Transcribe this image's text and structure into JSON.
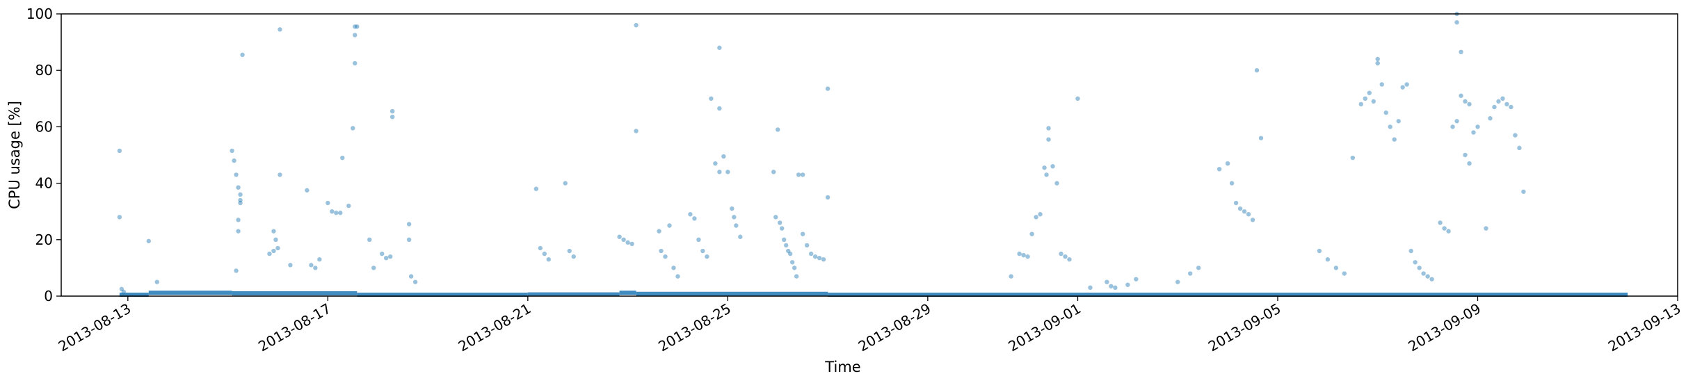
{
  "chart_data": {
    "type": "scatter",
    "xlabel": "Time",
    "ylabel": "CPU usage [%]",
    "xlim": [
      "2013-08-11T16:00",
      "2013-09-13T00:00"
    ],
    "ylim": [
      0,
      100
    ],
    "x_ticks": [
      "2013-08-13",
      "2013-08-17",
      "2013-08-21",
      "2013-08-25",
      "2013-08-29",
      "2013-09-01",
      "2013-09-05",
      "2013-09-09",
      "2013-09-13"
    ],
    "y_ticks": [
      0,
      20,
      40,
      60,
      80,
      100
    ],
    "grid": false,
    "legend": "none",
    "point_color": "#1f77b4",
    "points": [
      [
        "2013-08-12T20:00",
        51.5
      ],
      [
        "2013-08-12T20:00",
        28
      ],
      [
        "2013-08-12T21:00",
        2.5
      ],
      [
        "2013-08-12T22:00",
        1.5
      ],
      [
        "2013-08-13T10:00",
        19.5
      ],
      [
        "2013-08-13T14:00",
        5
      ],
      [
        "2013-08-15T02:00",
        51.5
      ],
      [
        "2013-08-15T03:00",
        48
      ],
      [
        "2013-08-15T04:00",
        43
      ],
      [
        "2013-08-15T05:00",
        38.5
      ],
      [
        "2013-08-15T06:00",
        36
      ],
      [
        "2013-08-15T06:00",
        34
      ],
      [
        "2013-08-15T06:00",
        33
      ],
      [
        "2013-08-15T04:00",
        9
      ],
      [
        "2013-08-15T07:00",
        85.5
      ],
      [
        "2013-08-15T05:00",
        27
      ],
      [
        "2013-08-15T05:00",
        23
      ],
      [
        "2013-08-15T20:00",
        15
      ],
      [
        "2013-08-15T22:00",
        16
      ],
      [
        "2013-08-16T00:00",
        17
      ],
      [
        "2013-08-15T22:00",
        23
      ],
      [
        "2013-08-15T23:00",
        20
      ],
      [
        "2013-08-16T01:00",
        94.5
      ],
      [
        "2013-08-16T01:00",
        43
      ],
      [
        "2013-08-16T06:00",
        11
      ],
      [
        "2013-08-16T14:00",
        37.5
      ],
      [
        "2013-08-16T16:00",
        11
      ],
      [
        "2013-08-16T18:00",
        10
      ],
      [
        "2013-08-16T20:00",
        13
      ],
      [
        "2013-08-17T00:00",
        33
      ],
      [
        "2013-08-17T02:00",
        30
      ],
      [
        "2013-08-17T04:00",
        29.5
      ],
      [
        "2013-08-17T06:00",
        29.5
      ],
      [
        "2013-08-17T07:00",
        49
      ],
      [
        "2013-08-17T10:00",
        32
      ],
      [
        "2013-08-17T12:00",
        59.5
      ],
      [
        "2013-08-17T13:00",
        82.5
      ],
      [
        "2013-08-17T13:00",
        92.5
      ],
      [
        "2013-08-17T13:00",
        95.5
      ],
      [
        "2013-08-17T14:00",
        95.5
      ],
      [
        "2013-08-17T20:00",
        20
      ],
      [
        "2013-08-17T22:00",
        10
      ],
      [
        "2013-08-18T02:00",
        15
      ],
      [
        "2013-08-18T04:00",
        13.5
      ],
      [
        "2013-08-18T06:00",
        14
      ],
      [
        "2013-08-18T07:00",
        63.5
      ],
      [
        "2013-08-18T07:00",
        65.5
      ],
      [
        "2013-08-18T15:00",
        25.5
      ],
      [
        "2013-08-18T15:00",
        20
      ],
      [
        "2013-08-18T16:00",
        7
      ],
      [
        "2013-08-18T18:00",
        5
      ],
      [
        "2013-08-21T04:00",
        38
      ],
      [
        "2013-08-21T06:00",
        17
      ],
      [
        "2013-08-21T08:00",
        15
      ],
      [
        "2013-08-21T10:00",
        13
      ],
      [
        "2013-08-21T18:00",
        40
      ],
      [
        "2013-08-21T20:00",
        16
      ],
      [
        "2013-08-21T22:00",
        14
      ],
      [
        "2013-08-22T20:00",
        21
      ],
      [
        "2013-08-22T22:00",
        20
      ],
      [
        "2013-08-23T00:00",
        19
      ],
      [
        "2013-08-23T02:00",
        18.5
      ],
      [
        "2013-08-23T04:00",
        96
      ],
      [
        "2013-08-23T04:00",
        58.5
      ],
      [
        "2013-08-23T15:00",
        23
      ],
      [
        "2013-08-23T16:00",
        16
      ],
      [
        "2013-08-23T18:00",
        14
      ],
      [
        "2013-08-23T20:00",
        25
      ],
      [
        "2013-08-23T22:00",
        10
      ],
      [
        "2013-08-24T00:00",
        7
      ],
      [
        "2013-08-24T06:00",
        29
      ],
      [
        "2013-08-24T08:00",
        27.5
      ],
      [
        "2013-08-24T10:00",
        20
      ],
      [
        "2013-08-24T12:00",
        16
      ],
      [
        "2013-08-24T14:00",
        14
      ],
      [
        "2013-08-24T16:00",
        70
      ],
      [
        "2013-08-24T20:00",
        66.5
      ],
      [
        "2013-08-24T20:00",
        88
      ],
      [
        "2013-08-24T18:00",
        47
      ],
      [
        "2013-08-24T20:00",
        44
      ],
      [
        "2013-08-24T22:00",
        49.5
      ],
      [
        "2013-08-25T00:00",
        44
      ],
      [
        "2013-08-25T02:00",
        31
      ],
      [
        "2013-08-25T03:00",
        28
      ],
      [
        "2013-08-25T04:00",
        25
      ],
      [
        "2013-08-25T06:00",
        21
      ],
      [
        "2013-08-25T22:00",
        44
      ],
      [
        "2013-08-26T00:00",
        59
      ],
      [
        "2013-08-25T23:00",
        28
      ],
      [
        "2013-08-26T01:00",
        26
      ],
      [
        "2013-08-26T02:00",
        24
      ],
      [
        "2013-08-26T03:00",
        20
      ],
      [
        "2013-08-26T04:00",
        18
      ],
      [
        "2013-08-26T05:00",
        16
      ],
      [
        "2013-08-26T06:00",
        15
      ],
      [
        "2013-08-26T07:00",
        12
      ],
      [
        "2013-08-26T08:00",
        10
      ],
      [
        "2013-08-26T09:00",
        7
      ],
      [
        "2013-08-26T10:00",
        43
      ],
      [
        "2013-08-26T12:00",
        43
      ],
      [
        "2013-08-26T12:00",
        22
      ],
      [
        "2013-08-26T14:00",
        18
      ],
      [
        "2013-08-26T16:00",
        15
      ],
      [
        "2013-08-26T18:00",
        14
      ],
      [
        "2013-08-26T20:00",
        13.5
      ],
      [
        "2013-08-26T22:00",
        13
      ],
      [
        "2013-08-27T00:00",
        73.5
      ],
      [
        "2013-08-27T00:00",
        35
      ],
      [
        "2013-08-30T16:00",
        7
      ],
      [
        "2013-08-30T20:00",
        15
      ],
      [
        "2013-08-30T22:00",
        14.5
      ],
      [
        "2013-08-31T00:00",
        14
      ],
      [
        "2013-08-31T02:00",
        22
      ],
      [
        "2013-08-31T04:00",
        28
      ],
      [
        "2013-08-31T06:00",
        29
      ],
      [
        "2013-08-31T08:00",
        45.5
      ],
      [
        "2013-08-31T09:00",
        43
      ],
      [
        "2013-08-31T10:00",
        55.5
      ],
      [
        "2013-08-31T10:00",
        59.5
      ],
      [
        "2013-08-31T12:00",
        46
      ],
      [
        "2013-08-31T14:00",
        40
      ],
      [
        "2013-08-31T16:00",
        15
      ],
      [
        "2013-08-31T18:00",
        14
      ],
      [
        "2013-08-31T20:00",
        13
      ],
      [
        "2013-09-01T00:00",
        70
      ],
      [
        "2013-09-01T06:00",
        3
      ],
      [
        "2013-09-01T14:00",
        5
      ],
      [
        "2013-09-01T16:00",
        3.5
      ],
      [
        "2013-09-01T18:00",
        3
      ],
      [
        "2013-09-02T00:00",
        4
      ],
      [
        "2013-09-02T04:00",
        6
      ],
      [
        "2013-09-03T00:00",
        5
      ],
      [
        "2013-09-03T06:00",
        8
      ],
      [
        "2013-09-03T10:00",
        10
      ],
      [
        "2013-09-03T20:00",
        45
      ],
      [
        "2013-09-04T00:00",
        47
      ],
      [
        "2013-09-04T02:00",
        40
      ],
      [
        "2013-09-04T04:00",
        33
      ],
      [
        "2013-09-04T06:00",
        31
      ],
      [
        "2013-09-04T08:00",
        30
      ],
      [
        "2013-09-04T10:00",
        29
      ],
      [
        "2013-09-04T12:00",
        27
      ],
      [
        "2013-09-04T14:00",
        80
      ],
      [
        "2013-09-04T16:00",
        56
      ],
      [
        "2013-09-05T20:00",
        16
      ],
      [
        "2013-09-06T00:00",
        13
      ],
      [
        "2013-09-06T04:00",
        10
      ],
      [
        "2013-09-06T08:00",
        8
      ],
      [
        "2013-09-06T12:00",
        49
      ],
      [
        "2013-09-06T16:00",
        68
      ],
      [
        "2013-09-06T18:00",
        70
      ],
      [
        "2013-09-06T20:00",
        72
      ],
      [
        "2013-09-06T22:00",
        69
      ],
      [
        "2013-09-07T00:00",
        84
      ],
      [
        "2013-09-07T00:00",
        82.5
      ],
      [
        "2013-09-07T02:00",
        75
      ],
      [
        "2013-09-07T04:00",
        65
      ],
      [
        "2013-09-07T06:00",
        60
      ],
      [
        "2013-09-07T08:00",
        55.5
      ],
      [
        "2013-09-07T10:00",
        62
      ],
      [
        "2013-09-07T12:00",
        74
      ],
      [
        "2013-09-07T14:00",
        75
      ],
      [
        "2013-09-07T16:00",
        16
      ],
      [
        "2013-09-07T18:00",
        12
      ],
      [
        "2013-09-07T20:00",
        10
      ],
      [
        "2013-09-07T22:00",
        8
      ],
      [
        "2013-09-08T00:00",
        7
      ],
      [
        "2013-09-08T02:00",
        6
      ],
      [
        "2013-09-08T06:00",
        26
      ],
      [
        "2013-09-08T08:00",
        24
      ],
      [
        "2013-09-08T10:00",
        23
      ],
      [
        "2013-09-08T12:00",
        60
      ],
      [
        "2013-09-08T14:00",
        62
      ],
      [
        "2013-09-08T14:00",
        100
      ],
      [
        "2013-09-08T14:00",
        97
      ],
      [
        "2013-09-08T16:00",
        86.5
      ],
      [
        "2013-09-08T16:00",
        71
      ],
      [
        "2013-09-08T18:00",
        69
      ],
      [
        "2013-09-08T20:00",
        68
      ],
      [
        "2013-09-08T18:00",
        50
      ],
      [
        "2013-09-08T20:00",
        47
      ],
      [
        "2013-09-08T22:00",
        58
      ],
      [
        "2013-09-09T00:00",
        60
      ],
      [
        "2013-09-09T04:00",
        24
      ],
      [
        "2013-09-09T06:00",
        63
      ],
      [
        "2013-09-09T08:00",
        67
      ],
      [
        "2013-09-09T10:00",
        69
      ],
      [
        "2013-09-09T12:00",
        70
      ],
      [
        "2013-09-09T14:00",
        68
      ],
      [
        "2013-09-09T16:00",
        67
      ],
      [
        "2013-09-09T18:00",
        57
      ],
      [
        "2013-09-09T20:00",
        52.5
      ],
      [
        "2013-09-09T22:00",
        37
      ]
    ],
    "baseline_segments": [
      {
        "from": "2013-08-12T20:00",
        "to": "2013-08-13T10:00",
        "value": 0.5
      },
      {
        "from": "2013-08-13T10:00",
        "to": "2013-08-15T02:00",
        "value": 1.2
      },
      {
        "from": "2013-08-15T02:00",
        "to": "2013-08-17T14:00",
        "value": 1.0
      },
      {
        "from": "2013-08-17T14:00",
        "to": "2013-08-21T00:00",
        "value": 0.5
      },
      {
        "from": "2013-08-21T00:00",
        "to": "2013-08-22T20:00",
        "value": 0.6
      },
      {
        "from": "2013-08-22T20:00",
        "to": "2013-08-23T04:00",
        "value": 1.2
      },
      {
        "from": "2013-08-23T04:00",
        "to": "2013-08-27T00:00",
        "value": 0.8
      },
      {
        "from": "2013-08-27T00:00",
        "to": "2013-09-12T00:00",
        "value": 0.5
      }
    ]
  }
}
